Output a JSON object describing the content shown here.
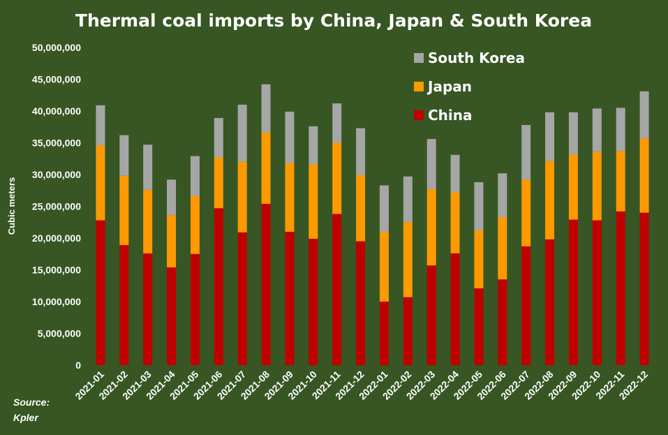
{
  "chart_data": {
    "type": "bar",
    "stacked": true,
    "title": "Thermal coal imports  by China, Japan & South Korea",
    "xlabel": "",
    "ylabel": "Cubic meters",
    "ylim": [
      0,
      50000000
    ],
    "ytick_values": [
      0,
      5000000,
      10000000,
      15000000,
      20000000,
      25000000,
      30000000,
      35000000,
      40000000,
      45000000,
      50000000
    ],
    "ytick_labels": [
      "0",
      "5,000,000",
      "10,000,000",
      "15,000,000",
      "20,000,000",
      "25,000,000",
      "30,000,000",
      "35,000,000",
      "40,000,000",
      "45,000,000",
      "50,000,000"
    ],
    "categories": [
      "2021-01",
      "2021-02",
      "2021-03",
      "2021-04",
      "2021-05",
      "2021-06",
      "2021-07",
      "2021-08",
      "2021-09",
      "2021-10",
      "2021-11",
      "2021-12",
      "2022-01",
      "2022-02",
      "2022-03",
      "2022-04",
      "2022-05",
      "2022-06",
      "2022-07",
      "2022-08",
      "2022-09",
      "2022-10",
      "2022-11",
      "2022-12"
    ],
    "series": [
      {
        "name": "China",
        "color": "#c00000",
        "values": [
          22800000,
          18900000,
          17600000,
          15400000,
          17500000,
          24700000,
          20900000,
          25400000,
          21000000,
          19900000,
          23800000,
          19500000,
          10000000,
          10700000,
          15700000,
          17600000,
          12100000,
          13500000,
          18700000,
          19800000,
          22900000,
          22800000,
          24200000,
          24000000
        ]
      },
      {
        "name": "Japan",
        "color": "#ff9900",
        "values": [
          11800000,
          10900000,
          10000000,
          8200000,
          9100000,
          8000000,
          11100000,
          11200000,
          10800000,
          11700000,
          11200000,
          10400000,
          11000000,
          11800000,
          12000000,
          9600000,
          9100000,
          9800000,
          10500000,
          12300000,
          10300000,
          10800000,
          9500000,
          11700000
        ]
      },
      {
        "name": "South Korea",
        "color": "#a6a6a6",
        "values": [
          6300000,
          6400000,
          7100000,
          5600000,
          6300000,
          6200000,
          9000000,
          7600000,
          8100000,
          6000000,
          6200000,
          7400000,
          7300000,
          7200000,
          7900000,
          5900000,
          7600000,
          6900000,
          8600000,
          7700000,
          6600000,
          6800000,
          6800000,
          7400000
        ]
      }
    ],
    "legend": {
      "placement": "top-right",
      "order": [
        "South Korea",
        "Japan",
        "China"
      ]
    },
    "grid": false,
    "source_line1": "Source:",
    "source_line2": "Kpler"
  },
  "colors": {
    "background": "#375623",
    "text": "#ffffff"
  }
}
